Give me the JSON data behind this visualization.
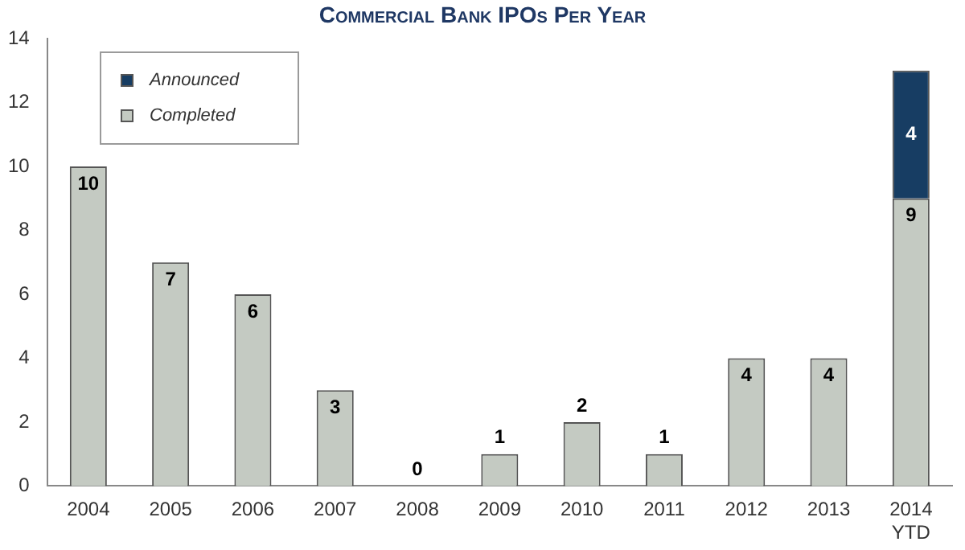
{
  "chart_data": {
    "type": "bar",
    "title": "Commercial Bank IPOs Per Year",
    "categories": [
      "2004",
      "2005",
      "2006",
      "2007",
      "2008",
      "2009",
      "2010",
      "2011",
      "2012",
      "2013",
      "2014\nYTD"
    ],
    "series": [
      {
        "name": "Completed",
        "color": "#c4cac2",
        "values": [
          10,
          7,
          6,
          3,
          0,
          1,
          2,
          1,
          4,
          4,
          9
        ]
      },
      {
        "name": "Announced",
        "color": "#173d63",
        "values": [
          null,
          null,
          null,
          null,
          null,
          null,
          null,
          null,
          null,
          null,
          4
        ]
      }
    ],
    "stacked": true,
    "ylim": [
      0,
      14
    ],
    "yticks": [
      0,
      2,
      4,
      6,
      8,
      10,
      12,
      14
    ],
    "grid": false,
    "legend": "top left",
    "data_labels": true
  }
}
